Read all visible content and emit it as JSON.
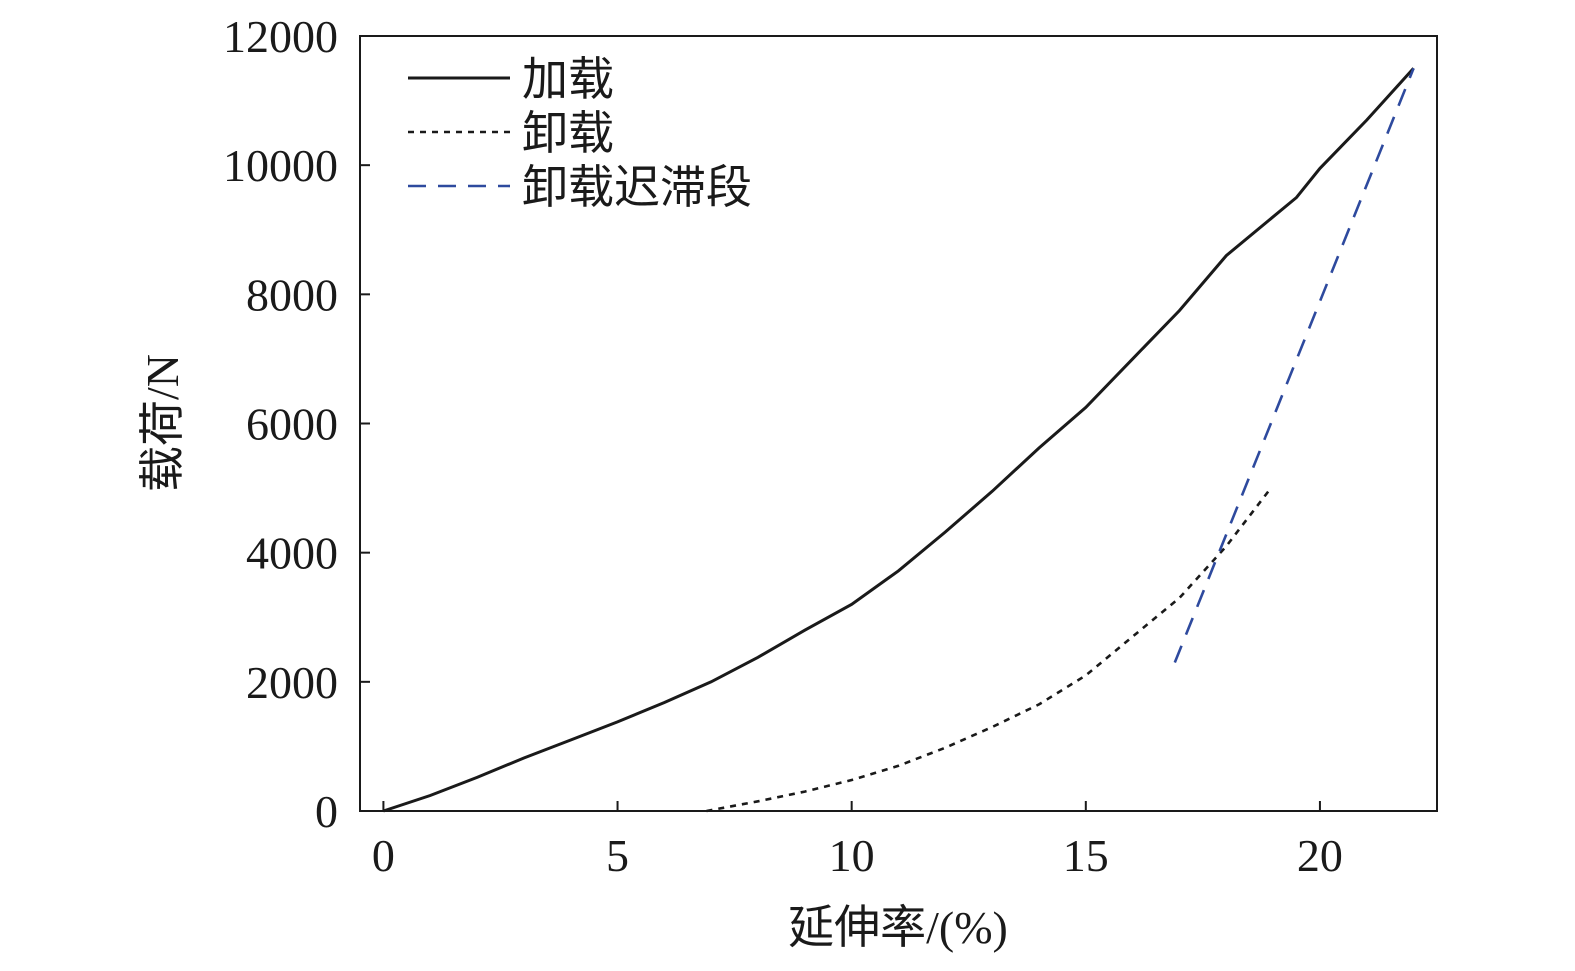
{
  "chart_data": {
    "type": "line",
    "title": "",
    "xlabel": "延伸率/(%)",
    "ylabel": "载荷/N",
    "xlim": [
      -0.5,
      22.5
    ],
    "ylim": [
      0,
      12000
    ],
    "xticks": [
      0,
      5,
      10,
      15,
      20
    ],
    "yticks": [
      0,
      2000,
      4000,
      6000,
      8000,
      10000,
      12000
    ],
    "grid": false,
    "legend_position": "top-left",
    "series": [
      {
        "name": "加载",
        "style": "solid",
        "color": "#1a1a1a",
        "x": [
          0,
          1,
          2,
          3,
          4,
          5,
          6,
          7,
          8,
          9,
          10,
          11,
          12,
          13,
          14,
          15,
          16,
          17,
          18,
          19,
          19.5,
          20,
          21,
          22
        ],
        "y": [
          0,
          240,
          520,
          820,
          1100,
          1380,
          1680,
          2000,
          2380,
          2800,
          3200,
          3720,
          4320,
          4950,
          5620,
          6250,
          7000,
          7750,
          8600,
          9200,
          9500,
          9950,
          10700,
          11500
        ]
      },
      {
        "name": "卸载",
        "style": "dotted",
        "color": "#1a1a1a",
        "x": [
          6.9,
          8,
          9,
          10,
          11,
          12,
          13,
          14,
          15,
          16,
          17,
          18,
          18.9
        ],
        "y": [
          0,
          150,
          300,
          480,
          700,
          980,
          1300,
          1650,
          2100,
          2700,
          3300,
          4100,
          4950
        ]
      },
      {
        "name": "卸载迟滞段",
        "style": "dashed",
        "color": "#2e4a9e",
        "x": [
          16.9,
          22
        ],
        "y": [
          2300,
          11500
        ]
      }
    ]
  }
}
